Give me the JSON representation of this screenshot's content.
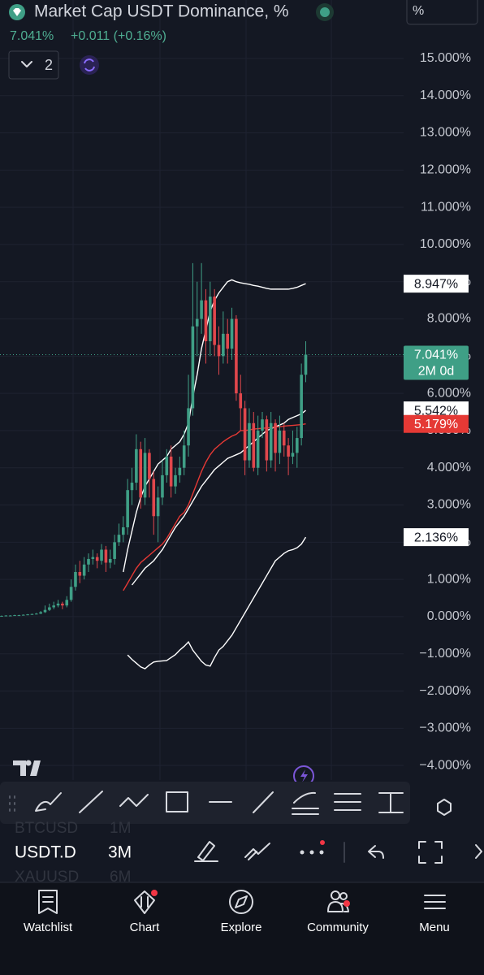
{
  "header": {
    "title": "Market Cap USDT Dominance, %",
    "price": "7.041%",
    "change": "+0.011 (+0.16%)",
    "indicators_count": 2,
    "scale_button": "%"
  },
  "chart_data": {
    "type": "candlestick",
    "up_color": "#3f9f86",
    "down_color": "#e0474c",
    "open": [
      0.01,
      0.02,
      0.03,
      0.03,
      0.04,
      0.04,
      0.05,
      0.06,
      0.07,
      0.08,
      0.12,
      0.18,
      0.25,
      0.3,
      0.35,
      0.3,
      0.45,
      0.8,
      1.2,
      1.1,
      1.4,
      1.55,
      1.6,
      1.5,
      1.8,
      1.45,
      1.55,
      2.0,
      2.2,
      2.4,
      3.4,
      3.6,
      4.5,
      3.2,
      4.4,
      3.7,
      2.7,
      3.2,
      3.8,
      4.3,
      3.5,
      3.8,
      4.0,
      4.6,
      5.6,
      7.8,
      8.0,
      8.5,
      7.4,
      8.6,
      7.3,
      7.0,
      7.6,
      7.2,
      8.0,
      6.0,
      5.6,
      4.2,
      5.2,
      4.0,
      5.0,
      5.3,
      4.2,
      5.2,
      4.4,
      5.0,
      4.6,
      4.3,
      4.4,
      4.8,
      6.5
    ],
    "high": [
      0.03,
      0.04,
      0.04,
      0.05,
      0.05,
      0.06,
      0.07,
      0.08,
      0.1,
      0.15,
      0.3,
      0.35,
      0.4,
      0.45,
      0.4,
      0.55,
      1.0,
      1.4,
      1.5,
      1.6,
      1.7,
      1.8,
      1.7,
      1.95,
      1.9,
      1.8,
      2.2,
      2.5,
      2.7,
      3.7,
      4.0,
      4.9,
      4.7,
      4.8,
      4.5,
      3.9,
      3.5,
      4.2,
      4.5,
      4.6,
      4.0,
      4.3,
      5.0,
      6.5,
      9.5,
      9.0,
      9.5,
      8.8,
      9.0,
      8.8,
      7.8,
      8.2,
      8.0,
      8.3,
      8.1,
      6.5,
      5.8,
      5.6,
      5.5,
      5.4,
      5.5,
      5.4,
      5.5,
      5.3,
      5.4,
      5.2,
      4.8,
      5.0,
      5.1,
      6.8,
      7.4
    ],
    "low": [
      0.0,
      0.01,
      0.02,
      0.02,
      0.03,
      0.03,
      0.04,
      0.05,
      0.06,
      0.07,
      0.1,
      0.15,
      0.2,
      0.25,
      0.2,
      0.25,
      0.4,
      0.7,
      0.9,
      1.0,
      1.2,
      1.4,
      1.3,
      1.4,
      1.2,
      1.3,
      1.4,
      1.9,
      2.0,
      2.2,
      3.0,
      3.4,
      2.9,
      3.0,
      3.2,
      2.2,
      2.0,
      3.0,
      3.6,
      3.2,
      3.3,
      3.6,
      3.8,
      4.3,
      5.4,
      7.0,
      7.6,
      6.8,
      7.0,
      7.0,
      6.5,
      6.8,
      6.8,
      6.9,
      5.8,
      5.0,
      3.8,
      4.0,
      3.9,
      3.8,
      4.8,
      3.9,
      4.0,
      3.9,
      4.1,
      4.3,
      3.8,
      4.1,
      4.0,
      4.6,
      6.3
    ],
    "close": [
      0.02,
      0.03,
      0.03,
      0.04,
      0.04,
      0.05,
      0.06,
      0.07,
      0.08,
      0.12,
      0.18,
      0.25,
      0.3,
      0.35,
      0.3,
      0.45,
      0.8,
      1.2,
      1.1,
      1.4,
      1.55,
      1.6,
      1.5,
      1.8,
      1.45,
      1.55,
      2.0,
      2.2,
      2.4,
      3.4,
      3.6,
      4.5,
      3.2,
      4.4,
      3.7,
      2.7,
      3.2,
      3.8,
      4.3,
      3.5,
      3.8,
      4.0,
      4.6,
      5.6,
      7.8,
      8.0,
      8.5,
      7.4,
      8.6,
      7.3,
      7.0,
      7.6,
      7.2,
      8.0,
      6.0,
      5.6,
      4.2,
      5.2,
      4.0,
      5.0,
      5.3,
      4.2,
      5.2,
      4.4,
      5.0,
      4.6,
      4.3,
      4.4,
      4.8,
      6.5,
      7.041
    ],
    "close_labels": [
      null,
      null,
      null,
      null,
      null,
      null,
      null,
      null,
      null,
      null,
      null,
      null,
      null,
      null,
      null,
      null,
      null,
      null,
      null,
      null,
      null,
      null,
      null,
      null,
      null,
      null,
      null,
      null,
      null,
      null,
      null,
      null,
      null,
      null,
      null,
      null,
      null,
      null,
      null,
      null,
      null,
      null,
      null,
      null,
      null,
      null,
      null,
      null,
      null,
      null,
      null,
      null,
      null,
      null,
      null,
      null,
      null,
      null,
      null,
      null,
      null,
      null,
      null,
      null,
      null,
      null,
      null,
      null,
      null,
      null,
      "7.041%"
    ],
    "countdown": "2M 0d",
    "series": [
      {
        "color": "#ffffff",
        "label_fill": "#ffffff",
        "values": [
          null,
          null,
          null,
          null,
          null,
          null,
          null,
          null,
          null,
          null,
          null,
          null,
          null,
          null,
          null,
          null,
          null,
          null,
          null,
          null,
          null,
          null,
          null,
          null,
          null,
          null,
          null,
          null,
          1.2,
          1.8,
          2.3,
          2.8,
          3.2,
          3.5,
          3.7,
          3.9,
          4.1,
          4.2,
          4.3,
          4.5,
          4.6,
          4.7,
          4.9,
          5.2,
          5.9,
          6.5,
          7.2,
          7.7,
          8.2,
          8.5,
          8.7,
          8.85,
          9.0,
          9.05,
          9.0,
          8.97,
          8.95,
          8.93,
          8.9,
          8.88,
          8.85,
          8.82,
          8.8,
          8.8,
          8.8,
          8.8,
          8.8,
          8.82,
          8.85,
          8.9,
          8.947
        ],
        "value_labels": [
          null,
          null,
          null,
          null,
          null,
          null,
          null,
          null,
          null,
          null,
          null,
          null,
          null,
          null,
          null,
          null,
          null,
          null,
          null,
          null,
          null,
          null,
          null,
          null,
          null,
          null,
          null,
          null,
          null,
          null,
          null,
          null,
          null,
          null,
          null,
          null,
          null,
          null,
          null,
          null,
          null,
          null,
          null,
          null,
          null,
          null,
          null,
          null,
          null,
          null,
          null,
          null,
          null,
          null,
          null,
          null,
          null,
          null,
          null,
          null,
          null,
          null,
          null,
          null,
          null,
          null,
          null,
          null,
          null,
          null,
          "8.947%"
        ]
      },
      {
        "color": "#ffffff",
        "label_fill": "#ffffff",
        "values": [
          null,
          null,
          null,
          null,
          null,
          null,
          null,
          null,
          null,
          null,
          null,
          null,
          null,
          null,
          null,
          null,
          null,
          null,
          null,
          null,
          null,
          null,
          null,
          null,
          null,
          null,
          null,
          null,
          null,
          null,
          0.85,
          1.0,
          1.15,
          1.3,
          1.4,
          1.5,
          1.65,
          1.8,
          2.0,
          2.2,
          2.4,
          2.55,
          2.7,
          2.9,
          3.1,
          3.3,
          3.5,
          3.65,
          3.8,
          3.95,
          4.05,
          4.15,
          4.25,
          4.3,
          4.35,
          4.4,
          4.5,
          4.6,
          4.7,
          4.8,
          4.9,
          5.0,
          5.05,
          5.1,
          5.15,
          5.2,
          5.3,
          5.35,
          5.4,
          5.45,
          5.542
        ],
        "value_labels": [
          null,
          null,
          null,
          null,
          null,
          null,
          null,
          null,
          null,
          null,
          null,
          null,
          null,
          null,
          null,
          null,
          null,
          null,
          null,
          null,
          null,
          null,
          null,
          null,
          null,
          null,
          null,
          null,
          null,
          null,
          null,
          null,
          null,
          null,
          null,
          null,
          null,
          null,
          null,
          null,
          null,
          null,
          null,
          null,
          null,
          null,
          null,
          null,
          null,
          null,
          null,
          null,
          null,
          null,
          null,
          null,
          null,
          null,
          null,
          null,
          null,
          null,
          null,
          null,
          null,
          null,
          null,
          null,
          null,
          null,
          "5.542%"
        ]
      },
      {
        "color": "#e53935",
        "label_fill": "#e53935",
        "values": [
          null,
          null,
          null,
          null,
          null,
          null,
          null,
          null,
          null,
          null,
          null,
          null,
          null,
          null,
          null,
          null,
          null,
          null,
          null,
          null,
          null,
          null,
          null,
          null,
          null,
          null,
          null,
          null,
          0.7,
          0.9,
          1.1,
          1.3,
          1.45,
          1.55,
          1.65,
          1.75,
          1.85,
          1.95,
          2.1,
          2.3,
          2.5,
          2.7,
          2.8,
          3.0,
          3.3,
          3.6,
          3.9,
          4.15,
          4.35,
          4.5,
          4.6,
          4.7,
          4.78,
          4.85,
          4.9,
          5.0,
          5.0,
          5.02,
          5.04,
          5.05,
          5.06,
          5.07,
          5.08,
          5.1,
          5.1,
          5.12,
          5.13,
          5.14,
          5.15,
          5.16,
          5.179
        ],
        "value_labels": [
          null,
          null,
          null,
          null,
          null,
          null,
          null,
          null,
          null,
          null,
          null,
          null,
          null,
          null,
          null,
          null,
          null,
          null,
          null,
          null,
          null,
          null,
          null,
          null,
          null,
          null,
          null,
          null,
          null,
          null,
          null,
          null,
          null,
          null,
          null,
          null,
          null,
          null,
          null,
          null,
          null,
          null,
          null,
          null,
          null,
          null,
          null,
          null,
          null,
          null,
          null,
          null,
          null,
          null,
          null,
          null,
          null,
          null,
          null,
          null,
          null,
          null,
          null,
          null,
          null,
          null,
          null,
          null,
          null,
          null,
          "5.179%"
        ]
      },
      {
        "color": "#ffffff",
        "label_fill": "#ffffff",
        "values": [
          null,
          null,
          null,
          null,
          null,
          null,
          null,
          null,
          null,
          null,
          null,
          null,
          null,
          null,
          null,
          null,
          null,
          null,
          null,
          null,
          null,
          null,
          null,
          null,
          null,
          null,
          null,
          null,
          null,
          -1.03,
          -1.15,
          -1.25,
          -1.35,
          -1.4,
          -1.3,
          -1.22,
          -1.2,
          -1.19,
          -1.18,
          -1.1,
          -1.02,
          -0.9,
          -0.8,
          -0.68,
          -0.9,
          -1.05,
          -1.2,
          -1.3,
          -1.33,
          -1.1,
          -0.9,
          -0.8,
          -0.65,
          -0.5,
          -0.3,
          -0.1,
          0.1,
          0.3,
          0.5,
          0.7,
          0.9,
          1.1,
          1.3,
          1.5,
          1.6,
          1.7,
          1.77,
          1.8,
          1.85,
          1.95,
          2.136
        ],
        "value_labels": [
          null,
          null,
          null,
          null,
          null,
          null,
          null,
          null,
          null,
          null,
          null,
          null,
          null,
          null,
          null,
          null,
          null,
          null,
          null,
          null,
          null,
          null,
          null,
          null,
          null,
          null,
          null,
          null,
          null,
          null,
          null,
          null,
          null,
          null,
          null,
          null,
          null,
          null,
          null,
          null,
          null,
          null,
          null,
          null,
          null,
          null,
          null,
          null,
          null,
          null,
          null,
          null,
          null,
          null,
          null,
          null,
          null,
          null,
          null,
          null,
          null,
          null,
          null,
          null,
          null,
          null,
          null,
          null,
          null,
          null,
          "2.136%"
        ]
      }
    ],
    "ylim": [
      -4.39,
      16.57
    ],
    "yticks": [
      {
        "value": 15,
        "label": "15.000%"
      },
      {
        "value": 14,
        "label": "14.000%"
      },
      {
        "value": 13,
        "label": "13.000%"
      },
      {
        "value": 12,
        "label": "12.000%"
      },
      {
        "value": 11,
        "label": "11.000%"
      },
      {
        "value": 10,
        "label": "10.000%"
      },
      {
        "value": 9,
        "label": "9.000%"
      },
      {
        "value": 8,
        "label": "8.000%"
      },
      {
        "value": 7,
        "label": "7.000%"
      },
      {
        "value": 6,
        "label": "6.000%"
      },
      {
        "value": 5,
        "label": "5.000%"
      },
      {
        "value": 4,
        "label": "4.000%"
      },
      {
        "value": 3,
        "label": "3.000%"
      },
      {
        "value": 2,
        "label": "2.000%"
      },
      {
        "value": 1,
        "label": "1.000%"
      },
      {
        "value": 0,
        "label": "0.000%"
      },
      {
        "value": -1,
        "label": "−1.000%"
      },
      {
        "value": -2,
        "label": "−2.000%"
      },
      {
        "value": -3,
        "label": "−3.000%"
      },
      {
        "value": -4,
        "label": "−4.000%"
      }
    ],
    "grid": true
  },
  "symbols": [
    {
      "name": "BTCUSD",
      "interval": "1M"
    },
    {
      "name": "USDT.D",
      "interval": "3M"
    },
    {
      "name": "XAUUSD",
      "interval": "6M"
    }
  ],
  "nav": [
    "Watchlist",
    "Chart",
    "Explore",
    "Community",
    "Menu"
  ]
}
